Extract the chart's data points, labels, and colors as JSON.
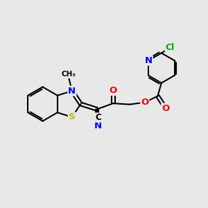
{
  "bg": "#e8e8e8",
  "bond_color": "#000000",
  "bw": 1.5,
  "atom_colors": {
    "N": "#0000ff",
    "O": "#ff0000",
    "S": "#bbbb00",
    "Cl": "#00aa00",
    "C": "#000000"
  },
  "fs": 9.5
}
